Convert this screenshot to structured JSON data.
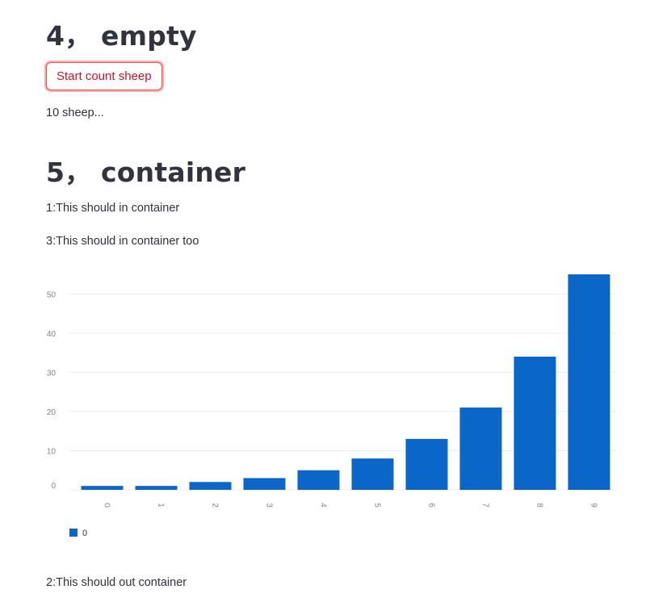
{
  "sections": {
    "empty": {
      "heading": "4， empty",
      "button_label": "Start count sheep",
      "status_text": "10 sheep..."
    },
    "container": {
      "heading": "5， container",
      "line1": "1:This should in container",
      "line3": "3:This should in container too",
      "outside_line": "2:This should out container"
    }
  },
  "colors": {
    "accent": "#ff4b4b",
    "bar": "#0a66c8",
    "text": "#31333f",
    "grid": "#ececec",
    "tick": "#808495"
  },
  "chart_data": {
    "type": "bar",
    "categories": [
      "0",
      "1",
      "2",
      "3",
      "4",
      "5",
      "6",
      "7",
      "8",
      "9"
    ],
    "series": [
      {
        "name": "0",
        "values": [
          1,
          1,
          2,
          3,
          5,
          8,
          13,
          21,
          34,
          55
        ]
      }
    ],
    "yticks": [
      0,
      10,
      20,
      30,
      40,
      50
    ],
    "ylim": [
      0,
      55
    ],
    "grid": true,
    "legend": "bottom-left",
    "title": "",
    "xlabel": "",
    "ylabel": ""
  }
}
